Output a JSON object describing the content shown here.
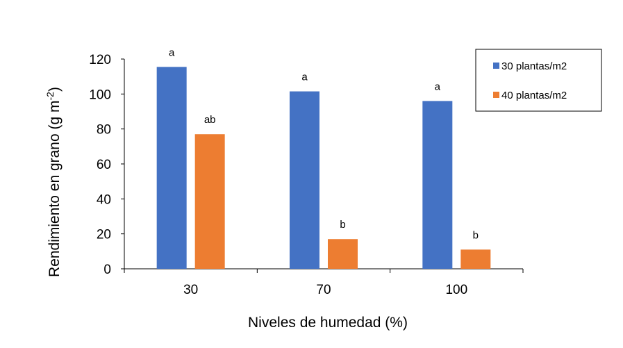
{
  "chart_data": {
    "type": "bar",
    "categories": [
      "30",
      "70",
      "100"
    ],
    "series": [
      {
        "name": "30 plantas/m2",
        "color": "#4472C4",
        "values": [
          115.5,
          101.5,
          96
        ],
        "labels": [
          "a",
          "a",
          "a"
        ]
      },
      {
        "name": "40 plantas/m2",
        "color": "#ED7D31",
        "values": [
          77,
          17,
          11
        ],
        "labels": [
          "ab",
          "b",
          "b"
        ]
      }
    ],
    "title": "",
    "xlabel": "Niveles de humedad (%)",
    "ylabel": {
      "main": "Rendimiento en grano (g m",
      "superscript": "-2",
      "end": ")"
    },
    "ylim": [
      0,
      120
    ],
    "yticks": [
      0,
      20,
      40,
      60,
      80,
      100,
      120
    ],
    "grid": false,
    "legend_position": "top-right"
  }
}
